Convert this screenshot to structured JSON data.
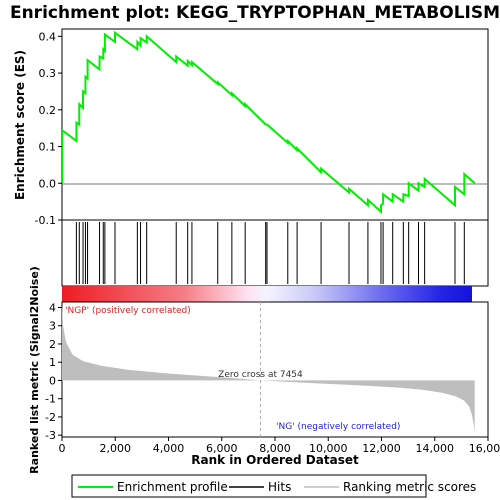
{
  "chart_data": {
    "type": "line",
    "title": "Enrichment plot: KEGG_TRYPTOPHAN_METABOLISM",
    "xlabel": "Rank in Ordered Dataset",
    "ylabel_top": "Enrichment score (ES)",
    "ylabel_bottom": "Ranked list metric (Signal2Noise)",
    "x_ticks": [
      "0",
      "2,000",
      "4,000",
      "6,000",
      "8,000",
      "10,000",
      "12,000",
      "14,000",
      "16,000"
    ],
    "es_ticks": [
      "-0.1",
      "0.0",
      "0.1",
      "0.2",
      "0.3",
      "0.4"
    ],
    "metric_ticks": [
      "-3",
      "-2",
      "-1",
      "0",
      "1",
      "2",
      "3",
      "4"
    ],
    "xlim": [
      0,
      16000
    ],
    "es_ylim": [
      -0.1,
      0.42
    ],
    "metric_ylim": [
      -3.1,
      4.3
    ],
    "n_genes": 15500,
    "zero_cross_rank": 7454,
    "zero_cross_text": "Zero cross at 7454",
    "pos_label": "'NGP' (positively correlated)",
    "neg_label": "'NG' (negatively correlated)",
    "hits": [
      0,
      540,
      650,
      790,
      880,
      960,
      1410,
      1550,
      1610,
      1990,
      2830,
      2950,
      3180,
      4290,
      4720,
      4880,
      5850,
      6380,
      6880,
      7650,
      7700,
      8480,
      8830,
      9730,
      10780,
      11490,
      11980,
      12060,
      12420,
      12820,
      13020,
      13390,
      13620,
      14760,
      15110
    ],
    "es_curve": [
      [
        0,
        0.0
      ],
      [
        1,
        0.145
      ],
      [
        540,
        0.115
      ],
      [
        541,
        0.165
      ],
      [
        650,
        0.16
      ],
      [
        651,
        0.215
      ],
      [
        790,
        0.205
      ],
      [
        791,
        0.25
      ],
      [
        880,
        0.245
      ],
      [
        881,
        0.29
      ],
      [
        960,
        0.285
      ],
      [
        961,
        0.335
      ],
      [
        1410,
        0.31
      ],
      [
        1411,
        0.345
      ],
      [
        1550,
        0.34
      ],
      [
        1551,
        0.365
      ],
      [
        1610,
        0.36
      ],
      [
        1611,
        0.405
      ],
      [
        1990,
        0.385
      ],
      [
        1991,
        0.41
      ],
      [
        2830,
        0.365
      ],
      [
        2831,
        0.385
      ],
      [
        2950,
        0.375
      ],
      [
        2951,
        0.395
      ],
      [
        3180,
        0.383
      ],
      [
        3181,
        0.4
      ],
      [
        4290,
        0.33
      ],
      [
        4291,
        0.345
      ],
      [
        4720,
        0.32
      ],
      [
        4721,
        0.333
      ],
      [
        4880,
        0.322
      ],
      [
        4881,
        0.33
      ],
      [
        5850,
        0.27
      ],
      [
        5851,
        0.275
      ],
      [
        6380,
        0.24
      ],
      [
        6381,
        0.245
      ],
      [
        6880,
        0.21
      ],
      [
        6881,
        0.215
      ],
      [
        7650,
        0.16
      ],
      [
        7700,
        0.16
      ],
      [
        8480,
        0.11
      ],
      [
        8481,
        0.115
      ],
      [
        8830,
        0.09
      ],
      [
        8831,
        0.095
      ],
      [
        9730,
        0.03
      ],
      [
        9731,
        0.04
      ],
      [
        10780,
        -0.025
      ],
      [
        10781,
        -0.015
      ],
      [
        11490,
        -0.06
      ],
      [
        11491,
        -0.045
      ],
      [
        11980,
        -0.078
      ],
      [
        11981,
        -0.06
      ],
      [
        12060,
        -0.055
      ],
      [
        12061,
        -0.03
      ],
      [
        12420,
        -0.05
      ],
      [
        12421,
        -0.03
      ],
      [
        12820,
        -0.05
      ],
      [
        12821,
        -0.03
      ],
      [
        13020,
        -0.035
      ],
      [
        13021,
        0.0
      ],
      [
        13390,
        -0.02
      ],
      [
        13391,
        0.0
      ],
      [
        13620,
        -0.01
      ],
      [
        13621,
        0.012
      ],
      [
        14760,
        -0.06
      ],
      [
        14761,
        -0.01
      ],
      [
        15110,
        -0.03
      ],
      [
        15111,
        0.025
      ],
      [
        15500,
        0.0
      ]
    ],
    "metric_curve": [
      [
        0,
        4.2
      ],
      [
        40,
        3.0
      ],
      [
        150,
        2.1
      ],
      [
        400,
        1.4
      ],
      [
        800,
        1.05
      ],
      [
        1500,
        0.8
      ],
      [
        2500,
        0.58
      ],
      [
        4000,
        0.38
      ],
      [
        5500,
        0.22
      ],
      [
        6500,
        0.12
      ],
      [
        7454,
        0.0
      ],
      [
        8500,
        -0.08
      ],
      [
        9500,
        -0.15
      ],
      [
        10500,
        -0.22
      ],
      [
        11500,
        -0.3
      ],
      [
        12500,
        -0.38
      ],
      [
        13500,
        -0.5
      ],
      [
        14300,
        -0.68
      ],
      [
        14800,
        -0.88
      ],
      [
        15100,
        -1.1
      ],
      [
        15300,
        -1.45
      ],
      [
        15400,
        -1.9
      ],
      [
        15460,
        -2.4
      ],
      [
        15500,
        -2.85
      ]
    ],
    "legend": [
      {
        "name": "Enrichment profile",
        "color": "#00ff00"
      },
      {
        "name": "Hits",
        "color": "#000000"
      },
      {
        "name": "Ranking metric scores",
        "color": "#bebebe"
      }
    ]
  }
}
